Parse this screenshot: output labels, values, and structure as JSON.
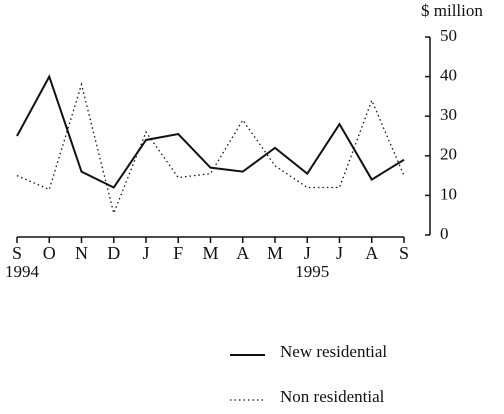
{
  "chart_data": {
    "type": "line",
    "y_axis_label": "$ million",
    "categories": [
      "S",
      "O",
      "N",
      "D",
      "J",
      "F",
      "M",
      "A",
      "M",
      "J",
      "J",
      "A",
      "S"
    ],
    "category_years": [
      "1994",
      null,
      null,
      null,
      null,
      null,
      null,
      null,
      null,
      "1995",
      null,
      null,
      null
    ],
    "series": [
      {
        "name": "New residential",
        "color": "#111111",
        "dash": "solid",
        "values": [
          25,
          40,
          16,
          12,
          24,
          25.5,
          17,
          16,
          22,
          15.5,
          28,
          14,
          19
        ]
      },
      {
        "name": "Non residential",
        "color": "#111111",
        "dash": "dotted",
        "values": [
          15,
          11.5,
          38,
          5.5,
          26,
          14.5,
          15.5,
          29,
          17.5,
          12,
          12,
          34,
          15
        ]
      }
    ],
    "ylim": [
      0,
      50
    ],
    "yticks": [
      0,
      10,
      20,
      30,
      40,
      50
    ],
    "y_axis_side": "right"
  }
}
